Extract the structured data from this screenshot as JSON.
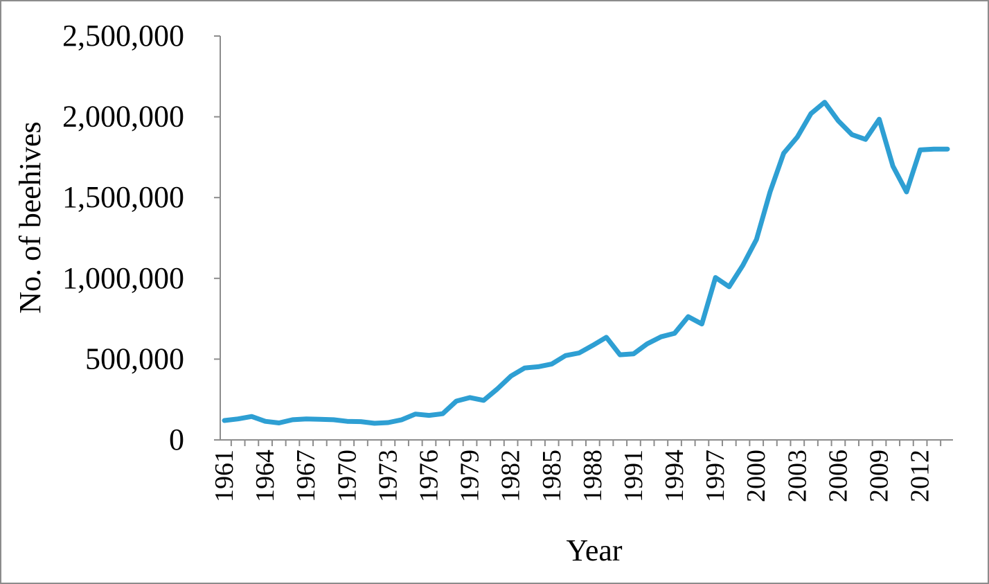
{
  "chart_data": {
    "type": "line",
    "title": "",
    "xlabel": "Year",
    "ylabel": "No. of beehives",
    "ylim": [
      0,
      2500000
    ],
    "y_ticks": [
      0,
      500000,
      1000000,
      1500000,
      2000000,
      2500000
    ],
    "y_tick_labels": [
      "0",
      "500,000",
      "1,000,000",
      "1,500,000",
      "2,000,000",
      "2,500,000"
    ],
    "x_tick_labels": [
      "1961",
      "1964",
      "1967",
      "1970",
      "1973",
      "1976",
      "1979",
      "1982",
      "1985",
      "1988",
      "1991",
      "1994",
      "1997",
      "2000",
      "2003",
      "2006",
      "2009",
      "2012"
    ],
    "grid": false,
    "legend": "none",
    "series": [
      {
        "name": "Beehives",
        "color": "#2e9fd3",
        "x": [
          1961,
          1962,
          1963,
          1964,
          1965,
          1966,
          1967,
          1968,
          1969,
          1970,
          1971,
          1972,
          1973,
          1974,
          1975,
          1976,
          1977,
          1978,
          1979,
          1980,
          1981,
          1982,
          1983,
          1984,
          1985,
          1986,
          1987,
          1988,
          1989,
          1990,
          1991,
          1992,
          1993,
          1994,
          1995,
          1996,
          1997,
          1998,
          1999,
          2000,
          2001,
          2002,
          2003,
          2004,
          2005,
          2006,
          2007,
          2008,
          2009,
          2010,
          2011,
          2012,
          2013,
          2014
        ],
        "values": [
          120000,
          130000,
          145000,
          115000,
          105000,
          125000,
          130000,
          128000,
          125000,
          115000,
          113000,
          103000,
          107000,
          125000,
          160000,
          152000,
          162000,
          240000,
          262000,
          245000,
          315000,
          395000,
          445000,
          453000,
          470000,
          522000,
          538000,
          585000,
          635000,
          527000,
          533000,
          595000,
          638000,
          660000,
          763000,
          718000,
          1005000,
          948000,
          1080000,
          1240000,
          1535000,
          1775000,
          1875000,
          2020000,
          2090000,
          1975000,
          1890000,
          1860000,
          1985000,
          1695000,
          1535000,
          1795000,
          1800000,
          1800000
        ]
      }
    ]
  }
}
